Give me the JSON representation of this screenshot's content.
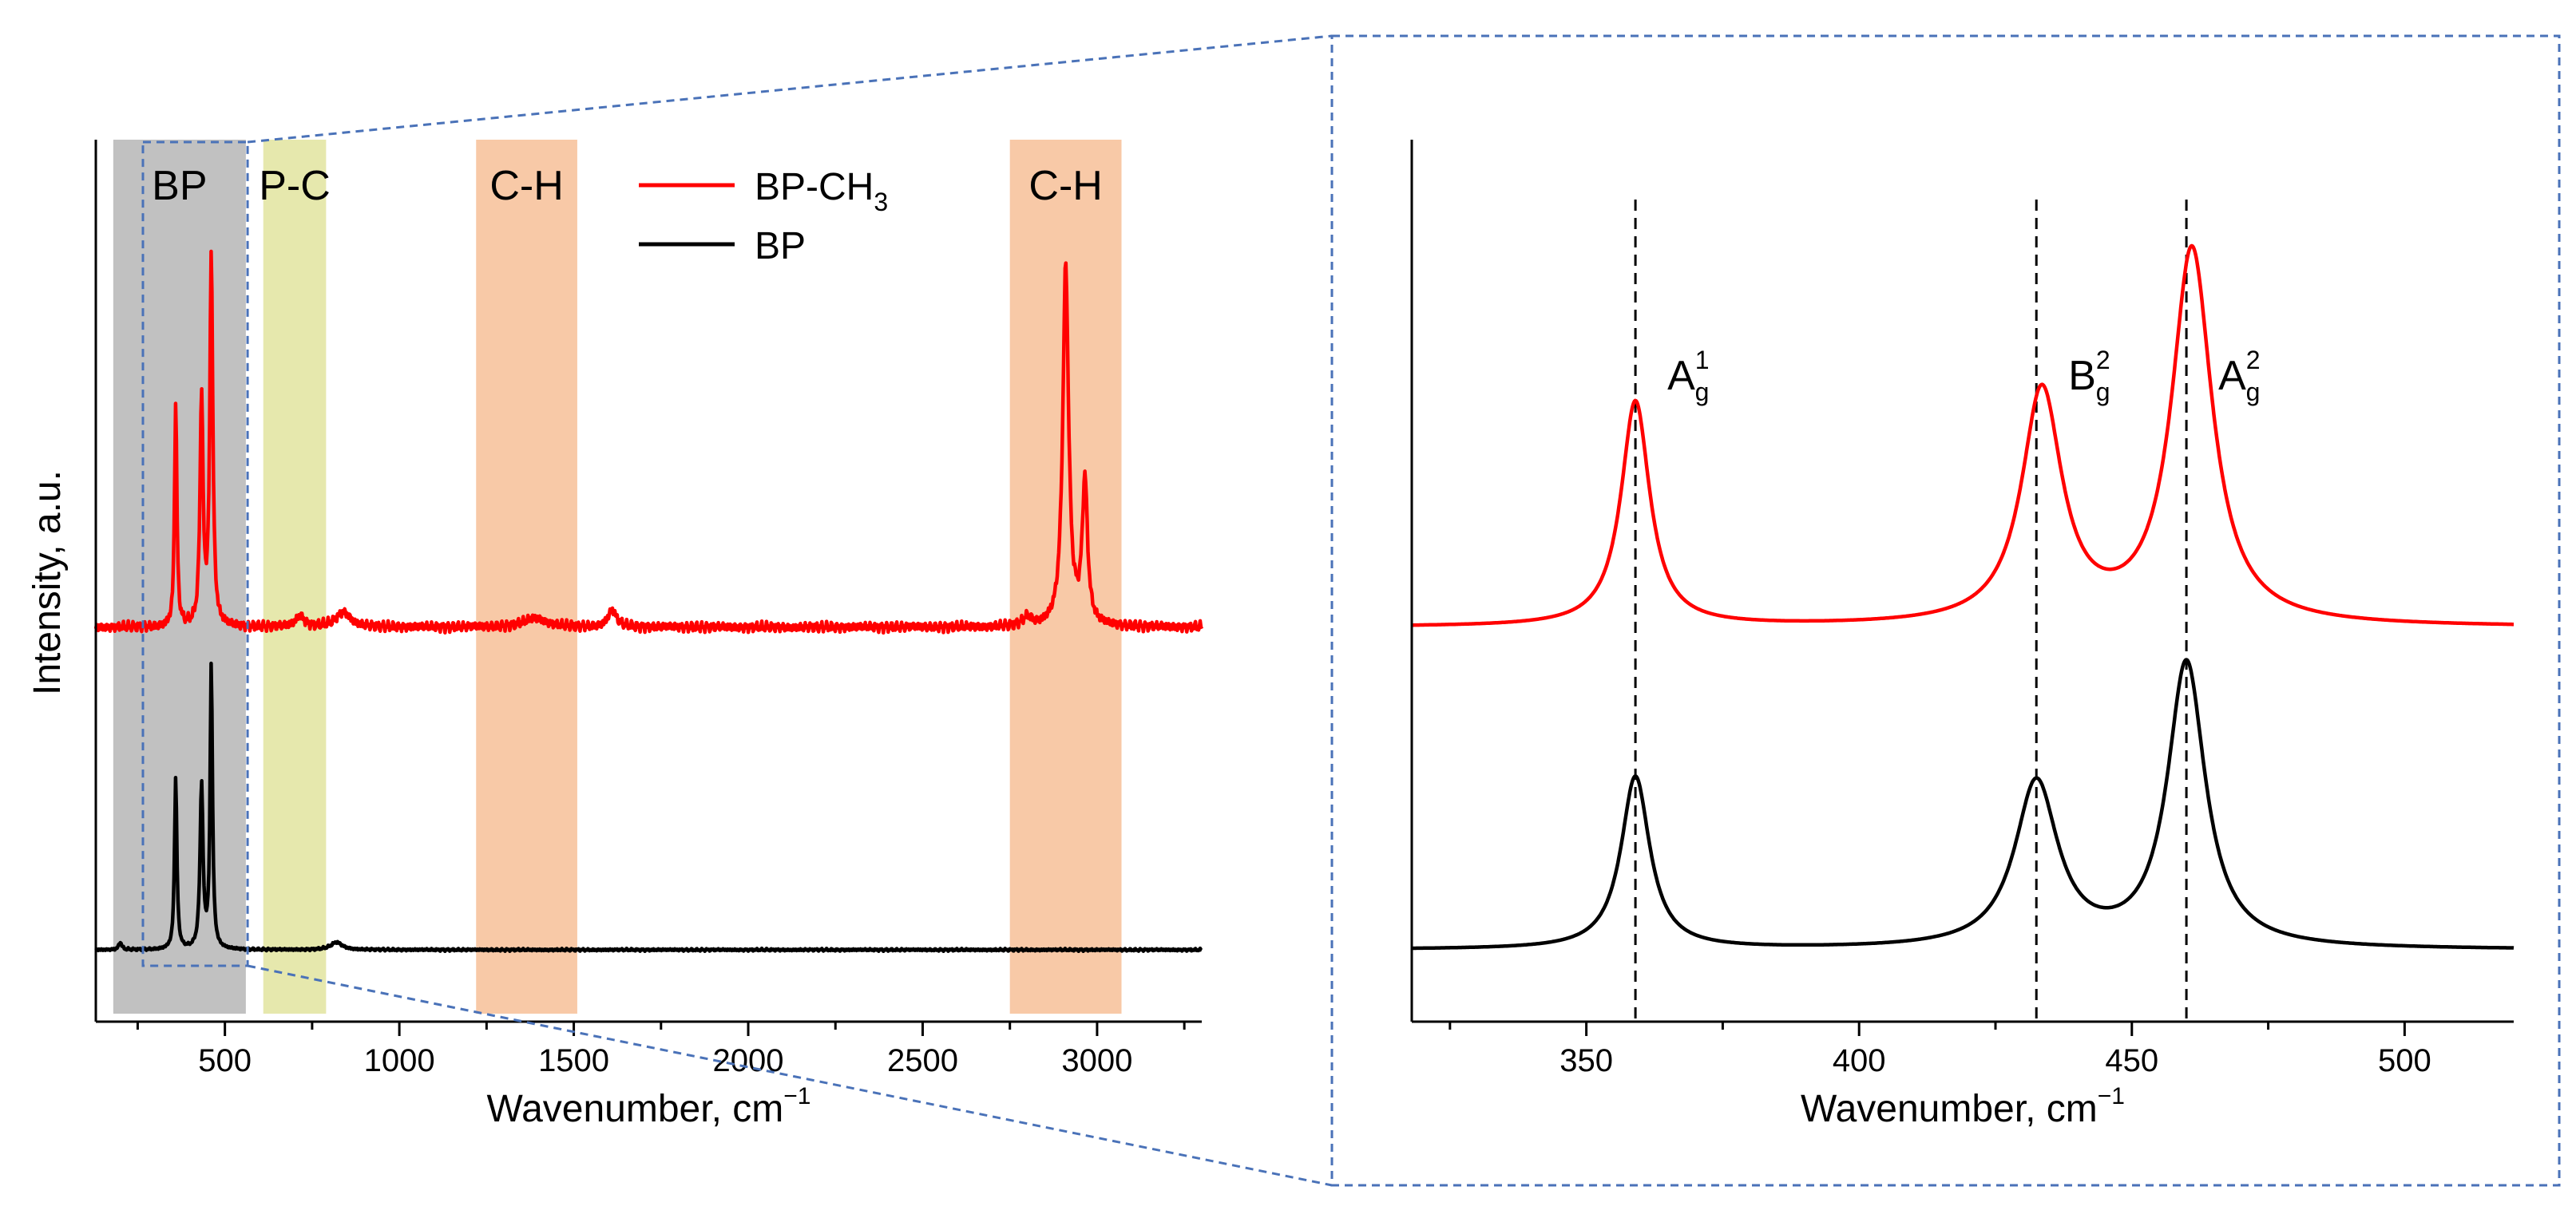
{
  "chart_data": [
    {
      "type": "line",
      "panel": "left",
      "xlabel": "Wavenumber, cm",
      "xlabel_sup": "−1",
      "ylabel": "Intensity, a.u.",
      "xlim": [
        130,
        3300
      ],
      "xticks": [
        500,
        1000,
        1500,
        2000,
        2500,
        3000
      ],
      "xtick_labels": [
        "500",
        "1000",
        "1500",
        "2000",
        "2500",
        "3000"
      ],
      "ylim": [
        -0.05,
        1.0
      ],
      "legend": {
        "placement": "top-center",
        "entries": [
          {
            "label": "BP-CH",
            "sub": "3",
            "color": "#ff0000"
          },
          {
            "label": "BP",
            "sub": "",
            "color": "#000000"
          }
        ]
      },
      "bands": [
        {
          "label": "BP",
          "range": [
            180,
            560
          ],
          "color": "#c1c1c1"
        },
        {
          "label": "P-C",
          "range": [
            610,
            790
          ],
          "color": "#e6e8ad"
        },
        {
          "label": "C-H",
          "range": [
            1220,
            1510
          ],
          "color": "#f8c9a7"
        },
        {
          "label": "C-H",
          "range": [
            2750,
            3070
          ],
          "color": "#f8c9a7"
        }
      ],
      "zoom_region": [
        265,
        565
      ],
      "series": [
        {
          "name": "BP-CH3",
          "color": "#ff0000",
          "baseline": 0.43,
          "peaks": [
            {
              "x": 359,
              "height": 0.3,
              "width": 4
            },
            {
              "x": 433,
              "height": 0.31,
              "width": 5
            },
            {
              "x": 461,
              "height": 0.5,
              "width": 5
            },
            {
              "x": 715,
              "height": 0.015,
              "width": 15
            },
            {
              "x": 840,
              "height": 0.02,
              "width": 25
            },
            {
              "x": 1390,
              "height": 0.012,
              "width": 40
            },
            {
              "x": 1610,
              "height": 0.022,
              "width": 15
            },
            {
              "x": 2800,
              "height": 0.012,
              "width": 15
            },
            {
              "x": 2910,
              "height": 0.48,
              "width": 10
            },
            {
              "x": 2965,
              "height": 0.19,
              "width": 9
            }
          ]
        },
        {
          "name": "BP",
          "color": "#000000",
          "baseline": 0.0,
          "peaks": [
            {
              "x": 200,
              "height": 0.01,
              "width": 5
            },
            {
              "x": 359,
              "height": 0.23,
              "width": 4
            },
            {
              "x": 433,
              "height": 0.22,
              "width": 5
            },
            {
              "x": 461,
              "height": 0.38,
              "width": 4
            },
            {
              "x": 820,
              "height": 0.01,
              "width": 20
            }
          ]
        }
      ]
    },
    {
      "type": "line",
      "panel": "right",
      "xlabel": "Wavenumber, cm",
      "xlabel_sup": "−1",
      "xlim": [
        318,
        520
      ],
      "xticks": [
        350,
        400,
        450,
        500
      ],
      "xtick_labels": [
        "350",
        "400",
        "450",
        "500"
      ],
      "minor_xticks": [
        325,
        375,
        425,
        475
      ],
      "ylim": [
        -0.05,
        1.0
      ],
      "peak_markers": [
        {
          "x": 359,
          "label": "A",
          "sup": "1",
          "sub": "g"
        },
        {
          "x": 432.5,
          "label": "B",
          "sup": "2",
          "sub": "g"
        },
        {
          "x": 460,
          "label": "A",
          "sup": "2",
          "sub": "g"
        }
      ],
      "series": [
        {
          "name": "BP-CH3",
          "color": "#ff0000",
          "baseline": 0.43,
          "peaks": [
            {
              "x": 359,
              "height": 0.3,
              "width": 3.2
            },
            {
              "x": 433.5,
              "height": 0.31,
              "width": 4.5
            },
            {
              "x": 461,
              "height": 0.5,
              "width": 4.5
            }
          ]
        },
        {
          "name": "BP",
          "color": "#000000",
          "baseline": 0.0,
          "peaks": [
            {
              "x": 359,
              "height": 0.23,
              "width": 3.2
            },
            {
              "x": 432.5,
              "height": 0.22,
              "width": 4.8
            },
            {
              "x": 460,
              "height": 0.38,
              "width": 4.2
            }
          ]
        }
      ]
    }
  ]
}
